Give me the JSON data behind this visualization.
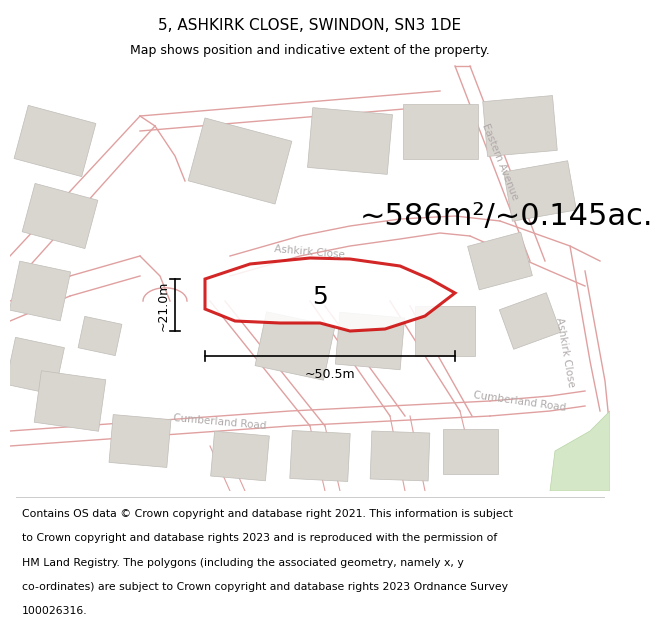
{
  "title": "5, ASHKIRK CLOSE, SWINDON, SN3 1DE",
  "subtitle": "Map shows position and indicative extent of the property.",
  "area_text": "~586m²/~0.145ac.",
  "width_label": "~50.5m",
  "height_label": "~21.0m",
  "plot_number": "5",
  "footer_lines": [
    "Contains OS data © Crown copyright and database right 2021. This information is subject",
    "to Crown copyright and database rights 2023 and is reproduced with the permission of",
    "HM Land Registry. The polygons (including the associated geometry, namely x, y",
    "co-ordinates) are subject to Crown copyright and database rights 2023 Ordnance Survey",
    "100026316."
  ],
  "map_bg": "#f2eeea",
  "building_fc": "#d9d5cf",
  "building_ec": "#c0bdb8",
  "road_line_color": "#e0a0a0",
  "road_line_lw": 1.0,
  "road_fill_color": "#f8f4f0",
  "property_ec": "#cc0000",
  "property_lw": 2.2,
  "green_color": "#d4e8c8",
  "green_ec": "#b8d4a4",
  "dim_color": "black",
  "label_color": "#b0aaaa",
  "title_fontsize": 11,
  "subtitle_fontsize": 9,
  "area_fontsize": 22,
  "plot_num_fontsize": 18,
  "road_label_fontsize": 7.5,
  "dim_fontsize": 9,
  "footer_fontsize": 7.8
}
